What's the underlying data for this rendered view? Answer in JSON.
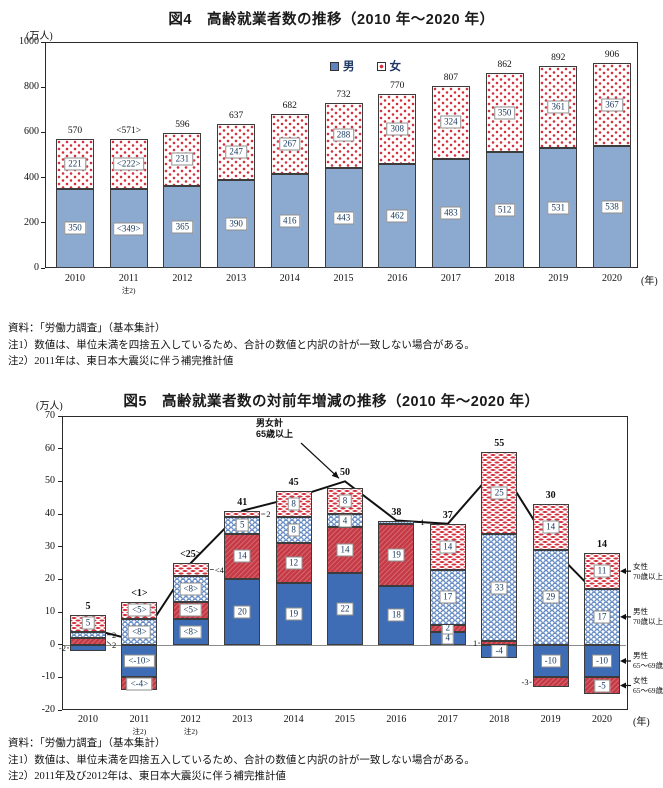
{
  "fig4": {
    "title": "図4　高齢就業者数の推移（2010 年～2020 年）",
    "unit_y": "(万人)",
    "unit_x": "(年)",
    "legend": {
      "male": "男",
      "female": "女"
    }
  },
  "notes_fig4": [
    "資料：「労働力調査」（基本集計）",
    "注1）数値は、単位未満を四捨五入しているため、合計の数値と内訳の計が一致しない場合がある。",
    "注2）2011年は、東日本大震災に伴う補完推計値"
  ],
  "fig5": {
    "title": "図5　高齢就業者数の対前年増減の推移（2010 年～2020 年）",
    "unit_y": "(万人)",
    "unit_x": "(年)",
    "line_label": [
      "男女計",
      "65歳以上"
    ],
    "right_labels": [
      {
        "t1": "女性",
        "t2": "70歳以上"
      },
      {
        "t1": "男性",
        "t2": "70歳以上"
      },
      {
        "t1": "男性",
        "t2": "65～69歳"
      },
      {
        "t1": "女性",
        "t2": "65～69歳"
      }
    ]
  },
  "notes_fig5": [
    "資料：「労働力調査」（基本集計）",
    "注1）数値は、単位未満を四捨五入しているため、合計の数値と内訳の計が一致しない場合がある。",
    "注2）2011年及び2012年は、東日本大震災に伴う補完推計値"
  ],
  "colors": {
    "male_chart1": "#8caacf",
    "male_65_69": "#3e6db6",
    "female_65_69": "#c63a46",
    "male_70_pattern": "#5b84c0",
    "female_70_pattern": "#d5323f",
    "line": "#111111"
  },
  "chart_data": [
    {
      "type": "bar",
      "stacked": true,
      "title": "図4　高齢就業者数の推移（2010年～2020年）",
      "ylabel": "(万人)",
      "xlabel": "(年)",
      "ylim": [
        0,
        1000
      ],
      "ytick_step": 200,
      "legend_position": "top-center",
      "categories": [
        "2010",
        "2011",
        "2012",
        "2013",
        "2014",
        "2015",
        "2016",
        "2017",
        "2018",
        "2019",
        "2020"
      ],
      "series": [
        {
          "name": "男",
          "style": "m1",
          "values": [
            350,
            349,
            365,
            390,
            416,
            443,
            462,
            483,
            512,
            531,
            538
          ],
          "display": [
            "350",
            "<349>",
            "365",
            "390",
            "416",
            "443",
            "462",
            "483",
            "512",
            "531",
            "538"
          ]
        },
        {
          "name": "女",
          "style": "f1",
          "values": [
            221,
            222,
            231,
            247,
            267,
            288,
            308,
            324,
            350,
            361,
            367
          ],
          "display": [
            "221",
            "<222>",
            "231",
            "247",
            "267",
            "288",
            "308",
            "324",
            "350",
            "361",
            "367"
          ]
        }
      ],
      "totals": [
        570,
        571,
        596,
        637,
        682,
        732,
        770,
        807,
        862,
        892,
        906
      ],
      "totals_display": [
        "570",
        "<571>",
        "596",
        "637",
        "682",
        "732",
        "770",
        "807",
        "862",
        "892",
        "906"
      ],
      "x_notes": [
        {
          "index": 1,
          "text": "注2)"
        }
      ]
    },
    {
      "type": "bar+line",
      "stacked": true,
      "title": "図5　高齢就業者数の対前年増減の推移（2010年～2020年）",
      "ylabel": "(万人)",
      "xlabel": "(年)",
      "ylim": [
        -20,
        70
      ],
      "ytick_step": 10,
      "categories": [
        "2010",
        "2011",
        "2012",
        "2013",
        "2014",
        "2015",
        "2016",
        "2017",
        "2018",
        "2019",
        "2020"
      ],
      "series": [
        {
          "name": "男性 65～69歳",
          "style": "m65",
          "values": [
            -2,
            -10,
            8,
            20,
            19,
            22,
            18,
            4,
            -4,
            -10,
            -10
          ],
          "display": [
            "-2",
            "<-10>",
            "<8>",
            "20",
            "19",
            "22",
            "18",
            "4",
            "-4",
            "-10",
            "-10"
          ],
          "label_pos": [
            "left",
            "in",
            "in",
            "in",
            "in",
            "in",
            "in",
            "in",
            "in",
            "in",
            "in"
          ]
        },
        {
          "name": "女性 65～69歳",
          "style": "f65",
          "values": [
            2,
            -4,
            5,
            14,
            12,
            14,
            19,
            2,
            1,
            -3,
            -5
          ],
          "display": [
            "2",
            "<-4>",
            "<5>",
            "14",
            "12",
            "14",
            "19",
            "2",
            "1",
            "-3",
            "-5"
          ],
          "label_pos": [
            "right",
            "in",
            "in",
            "in",
            "in",
            "in",
            "in",
            "in",
            "left",
            "left",
            "in"
          ]
        },
        {
          "name": "男性 70歳以上",
          "style": "m70",
          "values": [
            2,
            8,
            8,
            5,
            8,
            4,
            1,
            17,
            33,
            29,
            17
          ],
          "display": [
            "2",
            "<8>",
            "<8>",
            "5",
            "8",
            "4",
            "1",
            "17",
            "33",
            "29",
            "17"
          ],
          "label_pos": [
            "right",
            "in",
            "in",
            "in",
            "in",
            "in",
            "right",
            "in",
            "in",
            "in",
            "in"
          ]
        },
        {
          "name": "女性 70歳以上",
          "style": "f70",
          "values": [
            5,
            5,
            4,
            2,
            8,
            8,
            0,
            14,
            25,
            14,
            11
          ],
          "display": [
            "5",
            "<5>",
            "<4>",
            "2",
            "8",
            "8",
            "",
            "14",
            "25",
            "14",
            "11"
          ],
          "label_pos": [
            "in",
            "in",
            "right",
            "right",
            "in",
            "in",
            "none",
            "in",
            "in",
            "in",
            "in"
          ]
        }
      ],
      "line": {
        "name": "男女計 65歳以上",
        "values": [
          5,
          1,
          25,
          41,
          45,
          50,
          38,
          37,
          55,
          30,
          14
        ],
        "display": [
          "5",
          "<1>",
          "<25>",
          "41",
          "45",
          "50",
          "38",
          "37",
          "55",
          "30",
          "14"
        ]
      },
      "x_notes": [
        {
          "index": 1,
          "text": "注2)"
        },
        {
          "index": 2,
          "text": "注2)"
        }
      ]
    }
  ]
}
